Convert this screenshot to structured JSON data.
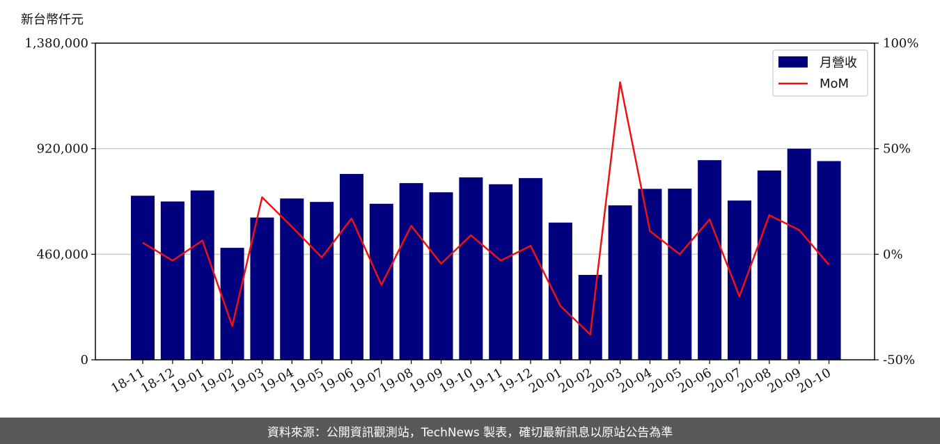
{
  "unit_label": "新台幣仟元",
  "footer_text": "資料來源：公開資訊觀測站，TechNews 製表，確切最新訊息以原站公告為準",
  "colors": {
    "bar": "#00007f",
    "line": "#ee1111",
    "grid": "#cccccc",
    "footer_bg": "#595959"
  },
  "chart_data": {
    "type": "bar",
    "categories": [
      "18-11",
      "18-12",
      "19-01",
      "19-02",
      "19-03",
      "19-04",
      "19-05",
      "19-06",
      "19-07",
      "19-08",
      "19-09",
      "19-10",
      "19-11",
      "19-12",
      "20-01",
      "20-02",
      "20-03",
      "20-04",
      "20-05",
      "20-06",
      "20-07",
      "20-08",
      "20-09",
      "20-10"
    ],
    "series": [
      {
        "name": "月營收",
        "type": "bar",
        "axis": "left",
        "values": [
          715000,
          690000,
          738000,
          488000,
          620000,
          703000,
          688000,
          810000,
          680000,
          770000,
          730000,
          795000,
          765000,
          792000,
          598000,
          370000,
          673000,
          745000,
          746000,
          870000,
          694000,
          825000,
          920000,
          866000
        ]
      },
      {
        "name": "MoM",
        "type": "line",
        "axis": "right",
        "unit": "%",
        "values": [
          5.5,
          -3.0,
          6.5,
          -34.0,
          27.0,
          13.0,
          -1.5,
          17.0,
          -14.5,
          13.5,
          -4.5,
          9.0,
          -3.0,
          4.0,
          -24.5,
          -38.0,
          81.5,
          11.0,
          0.0,
          16.5,
          -20.0,
          18.5,
          11.5,
          -5.0
        ]
      }
    ],
    "yticks_left": [
      0,
      460000,
      920000,
      1380000
    ],
    "ytick_labels_left": [
      "0",
      "460,000",
      "920,000",
      "1,380,000"
    ],
    "ylim_left": [
      0,
      1380000
    ],
    "yticks_right": [
      -50,
      0,
      50,
      100
    ],
    "ytick_labels_right": [
      "-50%",
      "0%",
      "50%",
      "100%"
    ],
    "ylim_right": [
      -50,
      100
    ],
    "grid": "horizontal",
    "legend_position": "top-right"
  }
}
